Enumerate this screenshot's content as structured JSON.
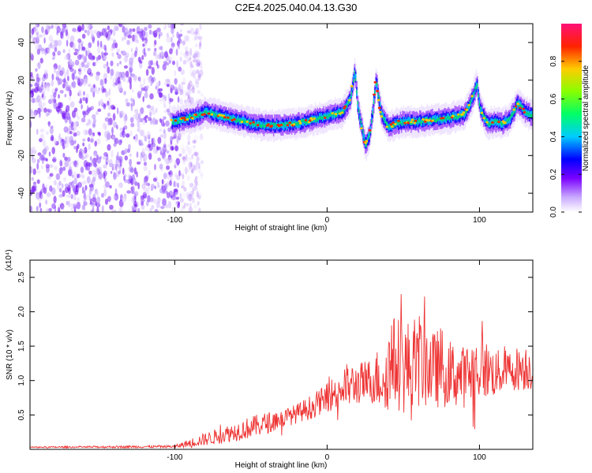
{
  "title": "C2E4.2025.040.04.13.G30",
  "chart_data": [
    {
      "type": "heatmap",
      "xlabel": "Height of straight line (km)",
      "ylabel": "Frequency (Hz)",
      "xlim": [
        -195,
        135
      ],
      "ylim": [
        -50,
        50
      ],
      "xticks": [
        -100,
        0,
        100
      ],
      "yticks": [
        -40,
        -20,
        0,
        20,
        40
      ],
      "noise_region_x": [
        -195,
        -90
      ],
      "ridge": {
        "x": [
          -100,
          -90,
          -80,
          -70,
          -60,
          -50,
          -40,
          -30,
          -20,
          -10,
          0,
          10,
          15,
          18,
          20,
          25,
          28,
          32,
          35,
          40,
          45,
          50,
          60,
          70,
          80,
          90,
          95,
          98,
          100,
          105,
          110,
          115,
          120,
          125,
          130,
          135
        ],
        "y": [
          -2,
          0,
          3,
          1,
          -1,
          -3,
          -4,
          -4,
          -3,
          -1,
          1,
          3,
          10,
          25,
          5,
          -15,
          -8,
          20,
          3,
          -5,
          -3,
          -2,
          -2,
          -1,
          0,
          2,
          10,
          18,
          5,
          -3,
          -2,
          -3,
          0,
          8,
          3,
          1
        ]
      },
      "colorbar": {
        "label": "Normalized spectral amplitude",
        "ticks": [
          0.0,
          0.2,
          0.4,
          0.6,
          0.8
        ],
        "range": [
          0,
          1
        ]
      }
    },
    {
      "type": "line",
      "xlabel": "Height of straight line (km)",
      "ylabel": "SNR (10 * v/v)",
      "exponent_label": "(x10⁴)",
      "xlim": [
        -195,
        135
      ],
      "ylim": [
        0,
        2.75
      ],
      "xticks": [
        -100,
        0,
        100
      ],
      "yticks": [
        0.5,
        1.0,
        1.5,
        2.0,
        2.5
      ],
      "color": "#ee3333",
      "envelope": {
        "x": [
          -195,
          -100,
          -85,
          -70,
          -60,
          -50,
          -40,
          -30,
          -20,
          -10,
          0,
          10,
          20,
          30,
          35,
          40,
          45,
          50,
          55,
          60,
          65,
          70,
          75,
          80,
          90,
          100,
          110,
          120,
          130,
          135
        ],
        "mean": [
          0.03,
          0.04,
          0.12,
          0.2,
          0.26,
          0.32,
          0.38,
          0.44,
          0.52,
          0.62,
          0.75,
          0.9,
          0.95,
          1.0,
          1.05,
          1.15,
          1.3,
          1.2,
          1.15,
          1.3,
          1.25,
          1.15,
          1.2,
          1.1,
          1.05,
          1.2,
          1.1,
          1.15,
          1.2,
          1.15
        ],
        "amp": [
          0.01,
          0.02,
          0.08,
          0.12,
          0.14,
          0.16,
          0.16,
          0.14,
          0.14,
          0.18,
          0.2,
          0.35,
          0.3,
          0.35,
          0.5,
          0.6,
          0.7,
          0.7,
          0.75,
          0.7,
          0.65,
          0.55,
          0.6,
          0.5,
          0.45,
          0.5,
          0.35,
          0.3,
          0.35,
          0.3
        ]
      }
    }
  ]
}
